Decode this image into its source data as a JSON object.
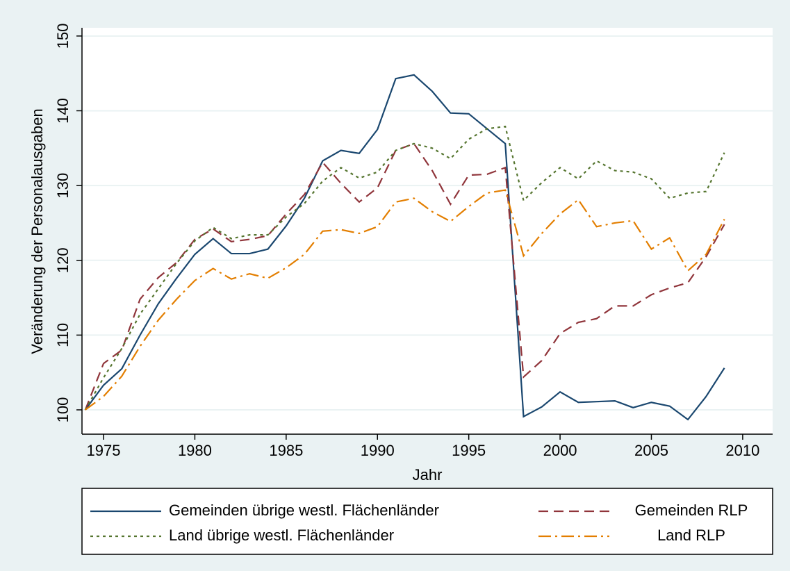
{
  "chart_data": {
    "type": "line",
    "x_label": "Jahr",
    "y_label": "Veränderung der Personalausgaben",
    "x": [
      1974,
      1975,
      1976,
      1977,
      1978,
      1979,
      1980,
      1981,
      1982,
      1983,
      1984,
      1985,
      1986,
      1987,
      1988,
      1989,
      1990,
      1991,
      1992,
      1993,
      1994,
      1995,
      1996,
      1997,
      1998,
      1999,
      2000,
      2001,
      2002,
      2003,
      2004,
      2005,
      2006,
      2007,
      2008,
      2009
    ],
    "series": [
      {
        "name": "Gemeinden übrige westl. Flächenländer",
        "color": "#1a476f",
        "dash": "solid",
        "values": [
          100,
          103.3,
          105.5,
          110,
          114.2,
          117.6,
          120.8,
          122.9,
          120.9,
          120.9,
          121.5,
          124.6,
          128.3,
          133.3,
          134.7,
          134.3,
          137.5,
          144.3,
          144.8,
          142.6,
          139.7,
          139.6,
          137.6,
          135.6,
          99.1,
          100.4,
          102.4,
          101.0,
          101.1,
          101.2,
          100.3,
          101.0,
          100.5,
          98.7,
          101.8,
          105.6
        ]
      },
      {
        "name": "Gemeinden RLP",
        "color": "#90353b",
        "dash": "dashed",
        "values": [
          100,
          106.2,
          108.0,
          114.8,
          117.7,
          119.7,
          122.8,
          124.2,
          122.5,
          122.8,
          123.3,
          126.2,
          128.8,
          133.1,
          130.3,
          127.8,
          129.7,
          134.7,
          135.6,
          132.0,
          127.5,
          131.4,
          131.5,
          132.4,
          104.4,
          106.6,
          110.2,
          111.7,
          112.2,
          113.9,
          113.9,
          115.4,
          116.3,
          117.0,
          120.5,
          124.8
        ]
      },
      {
        "name": "Land übrige westl. Flächenländer",
        "color": "#55752f",
        "dash": "dotted",
        "values": [
          100,
          104.3,
          108.2,
          112.8,
          116.2,
          119.6,
          122.6,
          124.4,
          122.9,
          123.4,
          123.4,
          125.8,
          127.6,
          130.6,
          132.4,
          131.0,
          131.8,
          134.7,
          135.6,
          135.0,
          133.6,
          136.2,
          137.6,
          137.9,
          128.0,
          130.4,
          132.4,
          130.9,
          133.3,
          132.0,
          131.8,
          130.9,
          128.3,
          129.0,
          129.2,
          134.4
        ]
      },
      {
        "name": "Land RLP",
        "color": "#e37e00",
        "dash": "dashdot",
        "values": [
          100,
          101.8,
          104.5,
          108.5,
          112.0,
          114.8,
          117.3,
          118.9,
          117.5,
          118.2,
          117.6,
          119.0,
          120.8,
          123.9,
          124.1,
          123.6,
          124.5,
          127.8,
          128.3,
          126.5,
          125.2,
          127.2,
          129.0,
          129.4,
          120.6,
          123.6,
          126.2,
          128.1,
          124.5,
          125.0,
          125.3,
          121.5,
          123.0,
          118.6,
          120.8,
          125.5
        ]
      }
    ],
    "xlim": [
      1973.82,
      2011.64
    ],
    "xticks": [
      1975,
      1980,
      1985,
      1990,
      1995,
      2000,
      2005,
      2010
    ],
    "ylim": [
      96.75,
      151.1
    ],
    "yticks": [
      100,
      110,
      120,
      130,
      140,
      150
    ],
    "grid": true
  }
}
